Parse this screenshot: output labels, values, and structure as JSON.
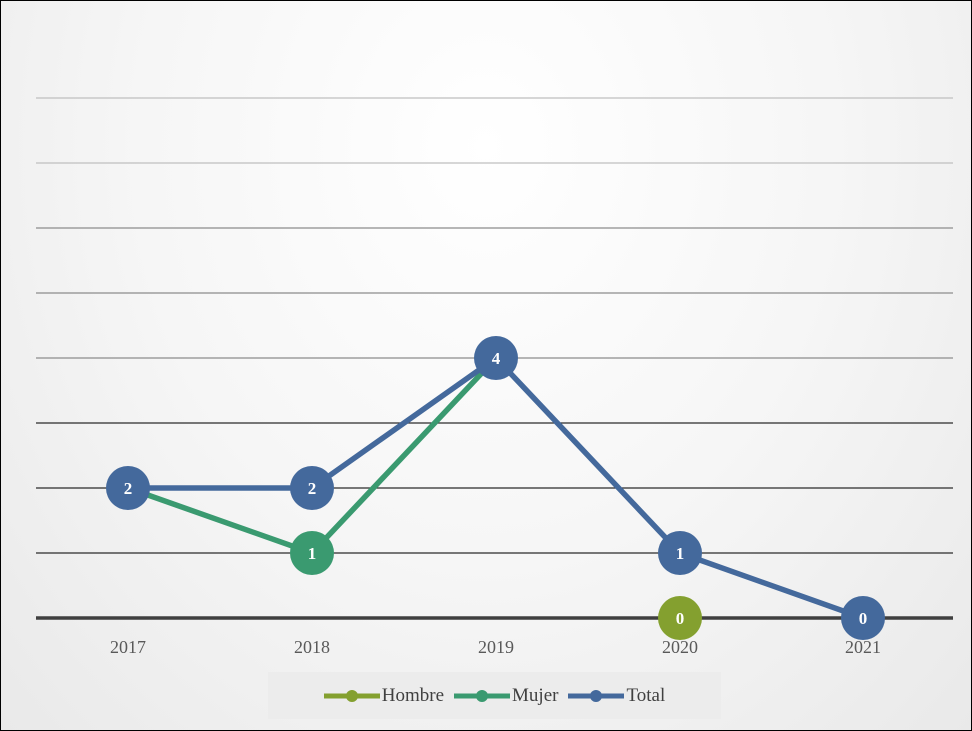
{
  "chart_data": {
    "type": "line",
    "categories": [
      "2017",
      "2018",
      "2019",
      "2020",
      "2021"
    ],
    "ylim": [
      0,
      8
    ],
    "grid": true,
    "legend_position": "bottom",
    "series": [
      {
        "name": "Hombre",
        "color": "#84a02f",
        "values": [
          null,
          null,
          null,
          0,
          null
        ],
        "labels": [
          "",
          "",
          "",
          "0",
          ""
        ]
      },
      {
        "name": "Mujer",
        "color": "#3a9a70",
        "values": [
          2,
          1,
          4,
          null,
          null
        ],
        "labels": [
          "",
          "1",
          "",
          "",
          ""
        ]
      },
      {
        "name": "Total",
        "color": "#44699c",
        "values": [
          2,
          2,
          4,
          1,
          0
        ],
        "labels": [
          "2",
          "2",
          "4",
          "1",
          "0"
        ]
      }
    ]
  }
}
